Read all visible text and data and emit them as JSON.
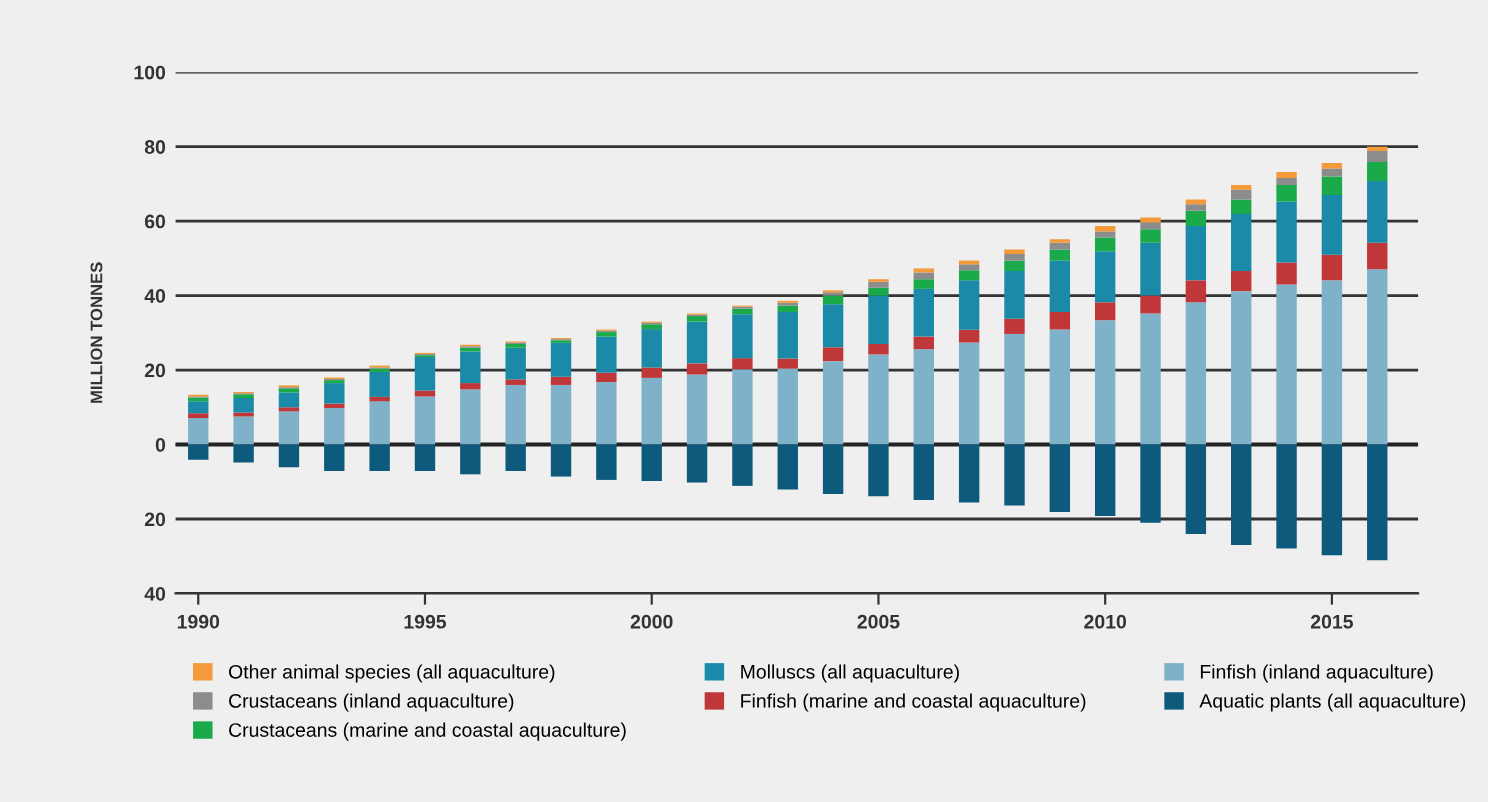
{
  "chart_data": {
    "type": "bar",
    "stacked": true,
    "ylabel": "MILLION TONNES",
    "x": [
      1990,
      1991,
      1992,
      1993,
      1994,
      1995,
      1996,
      1997,
      1998,
      1999,
      2000,
      2001,
      2002,
      2003,
      2004,
      2005,
      2006,
      2007,
      2008,
      2009,
      2010,
      2011,
      2012,
      2013,
      2014,
      2015,
      2016
    ],
    "xlim": [
      1989.5,
      2016.9
    ],
    "xticks": [
      1990,
      1995,
      2000,
      2005,
      2010,
      2015
    ],
    "ylim": [
      -40,
      100
    ],
    "yticks": [
      {
        "value": -40,
        "label": "40"
      },
      {
        "value": -20,
        "label": "20"
      },
      0,
      20,
      40,
      60,
      80,
      100
    ],
    "grid": "y",
    "legend": "bottom",
    "series": [
      {
        "name": "Finfish (inland aquaculture)",
        "color": "#7fb2c8",
        "values": [
          7.1,
          7.5,
          8.9,
          9.8,
          11.6,
          12.9,
          14.8,
          16.0,
          16.0,
          16.8,
          17.9,
          18.8,
          20.2,
          20.4,
          22.4,
          24.2,
          25.6,
          27.4,
          29.7,
          30.9,
          33.4,
          35.2,
          38.2,
          41.2,
          43.0,
          44.1,
          47.1
        ]
      },
      {
        "name": "Finfish (marine and coastal aquaculture)",
        "color": "#c0373a",
        "values": [
          1.3,
          1.1,
          1.1,
          1.2,
          1.2,
          1.6,
          1.7,
          1.5,
          2.2,
          2.5,
          2.8,
          3.0,
          3.0,
          2.7,
          3.7,
          2.8,
          3.4,
          3.4,
          4.1,
          4.7,
          4.8,
          4.8,
          5.9,
          5.4,
          5.9,
          6.9,
          7.1
        ]
      },
      {
        "name": "Molluscs (all aquaculture)",
        "color": "#1a8aa8",
        "values": [
          3.2,
          3.9,
          4.0,
          5.5,
          6.7,
          9.0,
          8.5,
          8.5,
          9.1,
          9.7,
          10.3,
          11.2,
          11.8,
          12.5,
          11.6,
          13.0,
          12.8,
          13.3,
          12.8,
          13.8,
          13.7,
          14.2,
          14.6,
          15.3,
          16.4,
          16.0,
          16.6
        ]
      },
      {
        "name": "Crustaceans (marine and coastal aquaculture)",
        "color": "#1aaa4a",
        "values": [
          1.0,
          1.0,
          1.1,
          0.8,
          0.9,
          0.5,
          1.0,
          1.0,
          0.7,
          1.2,
          1.3,
          1.5,
          1.5,
          1.7,
          2.3,
          2.1,
          2.6,
          2.7,
          2.8,
          3.0,
          3.7,
          3.6,
          4.1,
          3.9,
          4.4,
          5.0,
          5.1
        ]
      },
      {
        "name": "Crustaceans (inland aquaculture)",
        "color": "#8c8c8c",
        "values": [
          0.3,
          0.3,
          0.3,
          0.3,
          0.3,
          0.3,
          0.4,
          0.4,
          0.3,
          0.4,
          0.4,
          0.4,
          0.5,
          0.8,
          0.9,
          1.6,
          1.8,
          1.6,
          1.8,
          1.8,
          1.6,
          1.8,
          1.7,
          2.6,
          1.9,
          2.1,
          2.9
        ]
      },
      {
        "name": "Other animal species (all aquaculture)",
        "color": "#f39a3a",
        "values": [
          0.5,
          0.3,
          0.5,
          0.4,
          0.5,
          0.3,
          0.4,
          0.3,
          0.3,
          0.3,
          0.3,
          0.3,
          0.3,
          0.5,
          0.5,
          0.7,
          1.1,
          1.0,
          1.2,
          0.9,
          1.5,
          1.4,
          1.3,
          1.3,
          1.6,
          1.5,
          1.2
        ]
      },
      {
        "name": "Aquatic plants (all aquaculture)",
        "color": "#0e5a7c",
        "values": [
          -4.1,
          -4.8,
          -6.1,
          -7.1,
          -7.1,
          -7.1,
          -8.0,
          -7.1,
          -8.6,
          -9.5,
          -9.8,
          -10.2,
          -11.1,
          -12.1,
          -13.3,
          -13.9,
          -14.9,
          -15.6,
          -16.4,
          -18.1,
          -19.2,
          -21.0,
          -24.0,
          -27.0,
          -27.9,
          -29.7,
          -31.1
        ]
      }
    ]
  }
}
